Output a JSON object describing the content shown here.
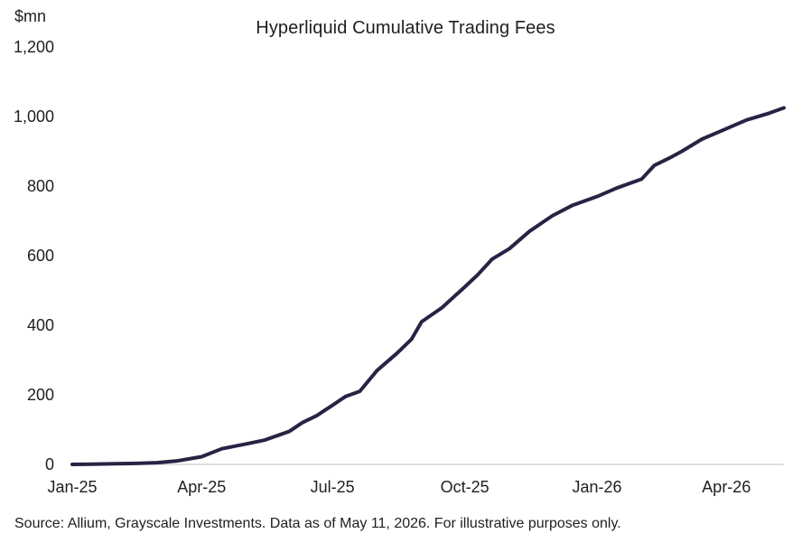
{
  "chart_data": {
    "type": "line",
    "title": "Hyperliquid Cumulative Trading Fees",
    "ylabel": "$mn",
    "xlabel": "",
    "ylim": [
      0,
      1200
    ],
    "xlim": [
      "2025-01-01",
      "2026-05-11"
    ],
    "y_ticks": [
      "0",
      "200",
      "400",
      "600",
      "800",
      "1,000",
      "1,200"
    ],
    "y_tick_values": [
      0,
      200,
      400,
      600,
      800,
      1000,
      1200
    ],
    "x_ticks": [
      "Jan-25",
      "Apr-25",
      "Jul-25",
      "Oct-25",
      "Jan-26",
      "Apr-26"
    ],
    "x_tick_dates": [
      "2025-01-01",
      "2025-04-01",
      "2025-07-01",
      "2025-10-01",
      "2026-01-01",
      "2026-04-01"
    ],
    "grid": false,
    "legend": "none",
    "series": [
      {
        "color": "#2a2244",
        "points": [
          [
            "2025-01-01",
            0
          ],
          [
            "2025-01-15",
            0.5
          ],
          [
            "2025-02-01",
            2
          ],
          [
            "2025-02-15",
            3
          ],
          [
            "2025-03-01",
            5
          ],
          [
            "2025-03-15",
            10
          ],
          [
            "2025-04-01",
            22
          ],
          [
            "2025-04-15",
            45
          ],
          [
            "2025-05-01",
            58
          ],
          [
            "2025-05-15",
            70
          ],
          [
            "2025-06-01",
            95
          ],
          [
            "2025-06-10",
            120
          ],
          [
            "2025-06-20",
            140
          ],
          [
            "2025-07-01",
            170
          ],
          [
            "2025-07-10",
            195
          ],
          [
            "2025-07-20",
            210
          ],
          [
            "2025-08-01",
            270
          ],
          [
            "2025-08-15",
            320
          ],
          [
            "2025-08-25",
            360
          ],
          [
            "2025-09-01",
            410
          ],
          [
            "2025-09-15",
            450
          ],
          [
            "2025-10-01",
            510
          ],
          [
            "2025-10-10",
            545
          ],
          [
            "2025-10-20",
            590
          ],
          [
            "2025-11-01",
            620
          ],
          [
            "2025-11-15",
            670
          ],
          [
            "2025-12-01",
            715
          ],
          [
            "2025-12-15",
            745
          ],
          [
            "2026-01-01",
            770
          ],
          [
            "2026-01-15",
            795
          ],
          [
            "2026-02-01",
            820
          ],
          [
            "2026-02-10",
            860
          ],
          [
            "2026-02-20",
            880
          ],
          [
            "2026-03-01",
            900
          ],
          [
            "2026-03-15",
            935
          ],
          [
            "2026-04-01",
            965
          ],
          [
            "2026-04-15",
            990
          ],
          [
            "2026-05-01",
            1010
          ],
          [
            "2026-05-11",
            1025
          ]
        ]
      }
    ]
  },
  "source": "Source: Allium, Grayscale Investments. Data as of May 11, 2026. For illustrative purposes only.",
  "colors": {
    "line": "#2a2244",
    "axis": "#bfbfbf",
    "text": "#1f1f1f"
  }
}
